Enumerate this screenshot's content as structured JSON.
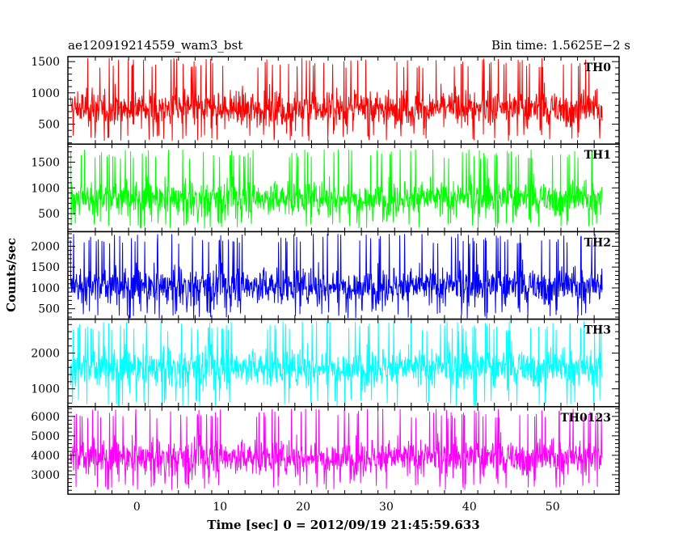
{
  "chart_data": {
    "type": "line",
    "title_left": "ae120919214559_wam3_bst",
    "title_right": "Bin time: 1.5625E−2 s",
    "xlabel": "Time [sec] 0 = 2012/09/19 21:45:59.633",
    "ylabel": "Counts/sec",
    "xlim": [
      -8.3,
      58
    ],
    "x_data_range": [
      -8.0,
      56.0
    ],
    "x_ticks": [
      0,
      10,
      20,
      30,
      40,
      50
    ],
    "x_tick_labels": [
      "0",
      "10",
      "20",
      "30",
      "40",
      "50"
    ],
    "panels": [
      {
        "name": "TH0",
        "color": "#ff0000",
        "ylim": [
          180,
          1580
        ],
        "y_ticks": [
          500,
          1000,
          1500
        ],
        "y_tick_labels": [
          "500",
          "1000",
          "1500"
        ],
        "y_mean": 750,
        "y_low": 350,
        "y_high": 1560
      },
      {
        "name": "TH1",
        "color": "#00ff00",
        "ylim": [
          150,
          1850
        ],
        "y_ticks": [
          500,
          1000,
          1500
        ],
        "y_tick_labels": [
          "500",
          "1000",
          "1500"
        ],
        "y_mean": 800,
        "y_low": 350,
        "y_high": 1750
      },
      {
        "name": "TH2",
        "color": "#0000ff",
        "ylim": [
          250,
          2350
        ],
        "y_ticks": [
          500,
          1000,
          1500,
          2000
        ],
        "y_tick_labels": [
          "500",
          "1000",
          "1500",
          "2000"
        ],
        "y_mean": 1050,
        "y_low": 450,
        "y_high": 2300
      },
      {
        "name": "TH3",
        "color": "#00ffff",
        "ylim": [
          500,
          2950
        ],
        "y_ticks": [
          1000,
          2000
        ],
        "y_tick_labels": [
          "1000",
          "2000"
        ],
        "y_mean": 1600,
        "y_low": 700,
        "y_high": 2900
      },
      {
        "name": "TH0123",
        "color": "#ff00ff",
        "ylim": [
          2000,
          6500
        ],
        "y_ticks": [
          3000,
          4000,
          5000,
          6000
        ],
        "y_tick_labels": [
          "3000",
          "4000",
          "5000",
          "6000"
        ],
        "y_mean": 3900,
        "y_low": 2600,
        "y_high": 6400
      }
    ]
  }
}
